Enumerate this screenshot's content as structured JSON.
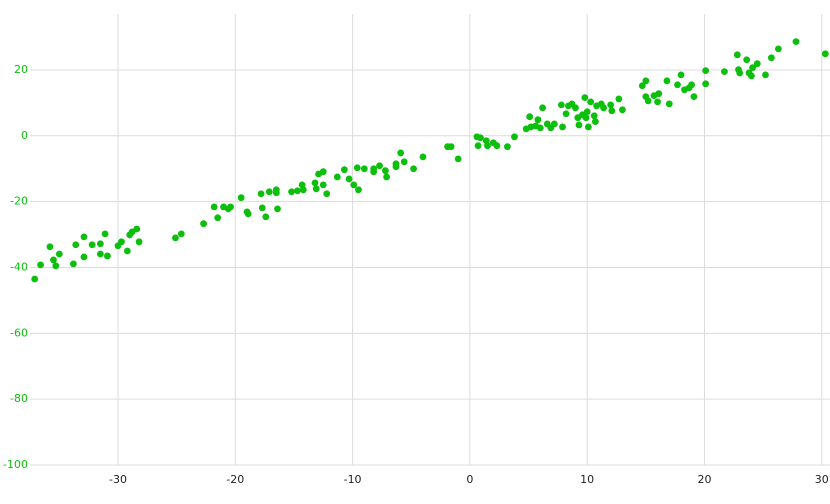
{
  "chart_data": {
    "type": "scatter",
    "color": "#0cbf0c",
    "grid": true,
    "xlim": [
      -37.5,
      30.7
    ],
    "ylim": [
      -100,
      37
    ],
    "xticks": [
      -30,
      -20,
      -10,
      0,
      10,
      20,
      30
    ],
    "yticks": [
      -100,
      -80,
      -60,
      -40,
      -20,
      0,
      20
    ],
    "x": [
      -37.1,
      -36.6,
      -35.8,
      -35.5,
      -35.3,
      -35.0,
      -33.8,
      -33.6,
      -32.9,
      -32.9,
      -32.2,
      -31.5,
      -31.5,
      -31.1,
      -30.9,
      -30.0,
      -29.7,
      -29.2,
      -29.0,
      -28.8,
      -28.4,
      -28.2,
      -25.1,
      -24.6,
      -22.7,
      -21.8,
      -21.5,
      -21.0,
      -20.6,
      -20.4,
      -19.5,
      -19.0,
      -18.9,
      -17.8,
      -17.7,
      -17.4,
      -17.1,
      -16.5,
      -16.5,
      -16.4,
      -15.2,
      -14.7,
      -14.3,
      -14.2,
      -13.2,
      -13.1,
      -12.9,
      -12.5,
      -12.5,
      -12.2,
      -11.3,
      -10.7,
      -10.3,
      -9.9,
      -9.6,
      -9.5,
      -9.0,
      -8.2,
      -8.2,
      -7.7,
      -7.2,
      -7.1,
      -6.3,
      -6.3,
      -5.9,
      -5.6,
      -4.8,
      -4.0,
      -1.9,
      -1.6,
      -1.0,
      0.6,
      0.7,
      0.9,
      1.4,
      1.5,
      2.0,
      2.3,
      3.2,
      3.8,
      4.8,
      5.1,
      5.2,
      5.6,
      5.8,
      6.0,
      6.2,
      6.6,
      6.9,
      7.2,
      7.8,
      7.9,
      8.2,
      8.4,
      8.7,
      9.0,
      9.2,
      9.3,
      9.6,
      9.8,
      9.9,
      10.0,
      10.1,
      10.3,
      10.6,
      10.7,
      10.8,
      11.2,
      11.4,
      12.0,
      12.1,
      12.7,
      13.0,
      14.7,
      15.0,
      15.0,
      15.2,
      15.7,
      16.1,
      16.0,
      16.8,
      17.0,
      17.7,
      18.0,
      18.3,
      18.7,
      18.9,
      19.1,
      20.1,
      20.1,
      21.7,
      22.8,
      22.9,
      23.0,
      23.6,
      23.8,
      24.0,
      24.1,
      24.5,
      25.2,
      25.7,
      26.3,
      27.8,
      30.3
    ],
    "values": [
      -43.5,
      -39.2,
      -33.7,
      -37.7,
      -39.5,
      -35.9,
      -38.9,
      -33.1,
      -30.7,
      -36.8,
      -33.1,
      -32.8,
      -35.9,
      -29.8,
      -36.5,
      -33.4,
      -32.2,
      -35.0,
      -30.1,
      -29.2,
      -28.3,
      -32.2,
      -31.0,
      -29.8,
      -26.7,
      -21.6,
      -24.9,
      -21.6,
      -22.2,
      -21.6,
      -18.8,
      -23.1,
      -23.7,
      -17.6,
      -21.9,
      -24.6,
      -17.0,
      -16.4,
      -17.3,
      -22.2,
      -17.0,
      -16.7,
      -14.9,
      -16.4,
      -14.3,
      -16.1,
      -11.6,
      -10.9,
      -14.9,
      -17.6,
      -12.5,
      -10.3,
      -13.1,
      -14.9,
      -9.7,
      -16.4,
      -10.0,
      -10.0,
      -10.9,
      -9.1,
      -10.6,
      -12.5,
      -8.5,
      -9.4,
      -5.2,
      -7.9,
      -10.0,
      -6.4,
      -3.3,
      -3.3,
      -7.0,
      -0.3,
      -3.0,
      -0.6,
      -1.5,
      -3.0,
      -2.1,
      -3.0,
      -3.3,
      -0.3,
      2.1,
      5.8,
      2.7,
      3.0,
      4.9,
      2.4,
      8.5,
      3.6,
      2.4,
      3.6,
      9.4,
      2.7,
      6.7,
      9.1,
      9.7,
      8.5,
      5.5,
      3.3,
      6.4,
      11.6,
      5.5,
      7.3,
      2.7,
      10.3,
      6.1,
      4.3,
      9.1,
      9.7,
      8.5,
      9.4,
      7.6,
      11.2,
      7.9,
      15.2,
      16.7,
      11.9,
      10.6,
      12.2,
      12.8,
      10.3,
      16.7,
      9.7,
      15.5,
      18.5,
      14.0,
      14.6,
      15.5,
      11.9,
      19.8,
      15.8,
      19.5,
      24.6,
      20.1,
      19.1,
      23.1,
      19.1,
      18.2,
      20.7,
      21.9,
      18.5,
      23.7,
      26.4,
      28.6,
      24.9
    ]
  }
}
